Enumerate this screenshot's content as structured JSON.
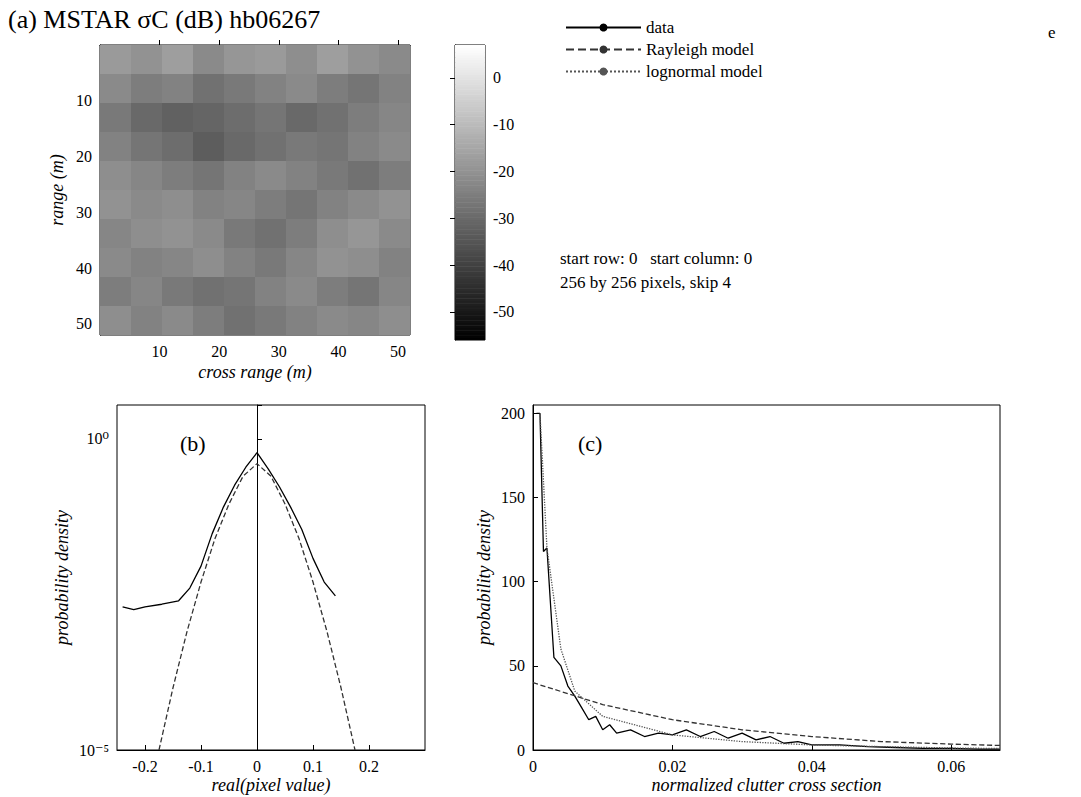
{
  "chart_data": [
    {
      "type": "heatmap",
      "title": "(a) MSTAR σC (dB) hb06267",
      "x_label": "cross range (m)",
      "y_label": "range (m)",
      "x": [
        2.6,
        7.8,
        13,
        18.2,
        23.4,
        28.6,
        33.8,
        39,
        44.2,
        49.4
      ],
      "y": [
        2.6,
        7.8,
        13,
        18.2,
        23.4,
        28.6,
        33.8,
        39,
        44.2,
        49.4
      ],
      "values": [
        [
          -18,
          -20,
          -17,
          -22,
          -19,
          -18,
          -21,
          -17,
          -20,
          -22
        ],
        [
          -22,
          -25,
          -24,
          -28,
          -26,
          -24,
          -22,
          -25,
          -27,
          -24
        ],
        [
          -26,
          -30,
          -32,
          -31,
          -29,
          -27,
          -30,
          -28,
          -25,
          -23
        ],
        [
          -24,
          -27,
          -29,
          -33,
          -30,
          -28,
          -26,
          -27,
          -24,
          -22
        ],
        [
          -21,
          -23,
          -25,
          -27,
          -24,
          -22,
          -24,
          -26,
          -28,
          -25
        ],
        [
          -20,
          -22,
          -21,
          -24,
          -23,
          -25,
          -27,
          -24,
          -22,
          -20
        ],
        [
          -23,
          -21,
          -20,
          -22,
          -26,
          -28,
          -25,
          -21,
          -19,
          -22
        ],
        [
          -22,
          -24,
          -23,
          -21,
          -24,
          -26,
          -23,
          -20,
          -21,
          -24
        ],
        [
          -25,
          -23,
          -26,
          -28,
          -27,
          -24,
          -22,
          -25,
          -27,
          -23
        ],
        [
          -21,
          -24,
          -22,
          -25,
          -28,
          -26,
          -24,
          -22,
          -23,
          -21
        ]
      ],
      "xlim": [
        0,
        52
      ],
      "ylim": [
        0,
        52
      ],
      "xticks": [
        10,
        20,
        30,
        40,
        50
      ],
      "yticks": [
        10,
        20,
        30,
        40,
        50
      ],
      "colorbar_range": [
        -56,
        7
      ],
      "colorbar_ticks": [
        0,
        -10,
        -20,
        -30,
        -40,
        -50
      ],
      "annotations": [
        "start row: 0   start column: 0",
        "256 by 256 pixels, skip 4",
        "e"
      ]
    },
    {
      "type": "line",
      "title": "(b)",
      "x_label": "real(pixel value)",
      "y_label": "probability density",
      "log": "y",
      "grid": false,
      "xlim": [
        -0.25,
        0.3
      ],
      "xticks": [
        -0.2,
        -0.1,
        0,
        0.1,
        0.2
      ],
      "ylim": [
        1e-05,
        3.5
      ],
      "yticks": [
        {
          "value": 1e-05,
          "label": "10⁻⁵"
        },
        {
          "value": 1,
          "label": "10⁰"
        }
      ],
      "series": [
        {
          "name": "data",
          "color": "#000000",
          "line_style": "solid",
          "x": [
            -0.24,
            -0.22,
            -0.2,
            -0.17,
            -0.14,
            -0.12,
            -0.1,
            -0.08,
            -0.06,
            -0.04,
            -0.02,
            0,
            0.02,
            0.04,
            0.06,
            0.08,
            0.1,
            0.12,
            0.14
          ],
          "values": [
            0.002,
            0.0018,
            0.002,
            0.0022,
            0.0025,
            0.004,
            0.009,
            0.03,
            0.08,
            0.18,
            0.35,
            0.6,
            0.33,
            0.17,
            0.08,
            0.035,
            0.012,
            0.005,
            0.003
          ]
        },
        {
          "name": "Rayleigh model",
          "color": "#333333",
          "line_style": "dashed",
          "x": [
            -0.175,
            -0.15,
            -0.125,
            -0.1,
            -0.075,
            -0.05,
            -0.025,
            0,
            0.025,
            0.05,
            0.075,
            0.1,
            0.125,
            0.15,
            0.175
          ],
          "values": [
            1e-05,
            0.0001,
            0.0008,
            0.005,
            0.025,
            0.09,
            0.25,
            0.4,
            0.25,
            0.09,
            0.025,
            0.005,
            0.0008,
            0.0001,
            1e-05
          ]
        }
      ]
    },
    {
      "type": "line",
      "title": "(c)",
      "x_label": "normalized clutter cross section",
      "y_label": "probability density",
      "grid": false,
      "legend": "top-right",
      "xlim": [
        0,
        0.067
      ],
      "xticks": [
        0,
        0.02,
        0.04,
        0.06
      ],
      "ylim": [
        0,
        205
      ],
      "yticks": [
        0,
        50,
        100,
        150,
        200
      ],
      "series": [
        {
          "name": "data",
          "color": "#000000",
          "line_style": "solid",
          "x": [
            0.0005,
            0.001,
            0.0015,
            0.002,
            0.003,
            0.004,
            0.005,
            0.006,
            0.007,
            0.008,
            0.009,
            0.01,
            0.011,
            0.012,
            0.014,
            0.016,
            0.018,
            0.02,
            0.022,
            0.024,
            0.026,
            0.028,
            0.03,
            0.032,
            0.034,
            0.036,
            0.038,
            0.04,
            0.044,
            0.048,
            0.052,
            0.056,
            0.06,
            0.064,
            0.067
          ],
          "values": [
            200,
            200,
            118,
            120,
            55,
            50,
            38,
            32,
            25,
            18,
            20,
            12,
            15,
            10,
            12,
            8,
            10,
            9,
            12,
            8,
            11,
            7,
            10,
            6,
            8,
            4,
            5,
            3,
            3,
            2,
            1.5,
            1,
            1,
            0.5,
            0.5
          ]
        },
        {
          "name": "Rayleigh model",
          "color": "#333333",
          "line_style": "dashed",
          "x": [
            0,
            0.01,
            0.02,
            0.03,
            0.04,
            0.05,
            0.06,
            0.067
          ],
          "values": [
            40,
            27,
            18,
            12,
            8,
            5,
            3.5,
            2.7
          ]
        },
        {
          "name": "lognormal model",
          "color": "#555555",
          "line_style": "dotted",
          "x": [
            0.001,
            0.002,
            0.004,
            0.006,
            0.01,
            0.02,
            0.03,
            0.04,
            0.05,
            0.06,
            0.067
          ],
          "values": [
            200,
            120,
            60,
            35,
            20,
            9,
            5,
            3,
            2,
            1.2,
            0.9
          ]
        }
      ]
    }
  ]
}
